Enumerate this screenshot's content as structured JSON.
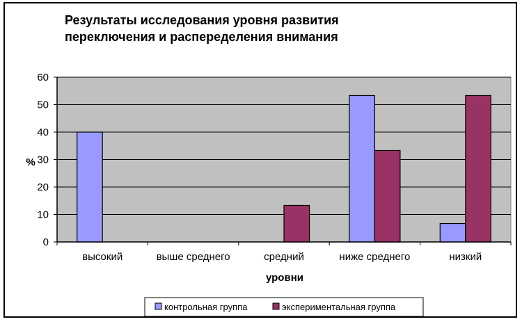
{
  "chart_data": {
    "type": "bar",
    "title": [
      "Результаты исследования уровня развития",
      "переключения и распеределения внимания"
    ],
    "xlabel": "уровни",
    "ylabel": "%",
    "categories": [
      "высокий",
      "выше среднего",
      "средний",
      "ниже среднего",
      "низкий"
    ],
    "series": [
      {
        "name": "контрольная  группа",
        "values": [
          40,
          0,
          0,
          53.3,
          6.7
        ],
        "color": "#9999ff"
      },
      {
        "name": "экспериментальная  группа",
        "values": [
          0,
          0,
          13.3,
          33.3,
          53.3
        ],
        "color": "#993366"
      }
    ],
    "ylim": [
      0,
      60
    ],
    "yticks": [
      0,
      10,
      20,
      30,
      40,
      50,
      60
    ],
    "grid": true,
    "plot_background": "#c0c0c0",
    "legend_position": "bottom-center"
  }
}
